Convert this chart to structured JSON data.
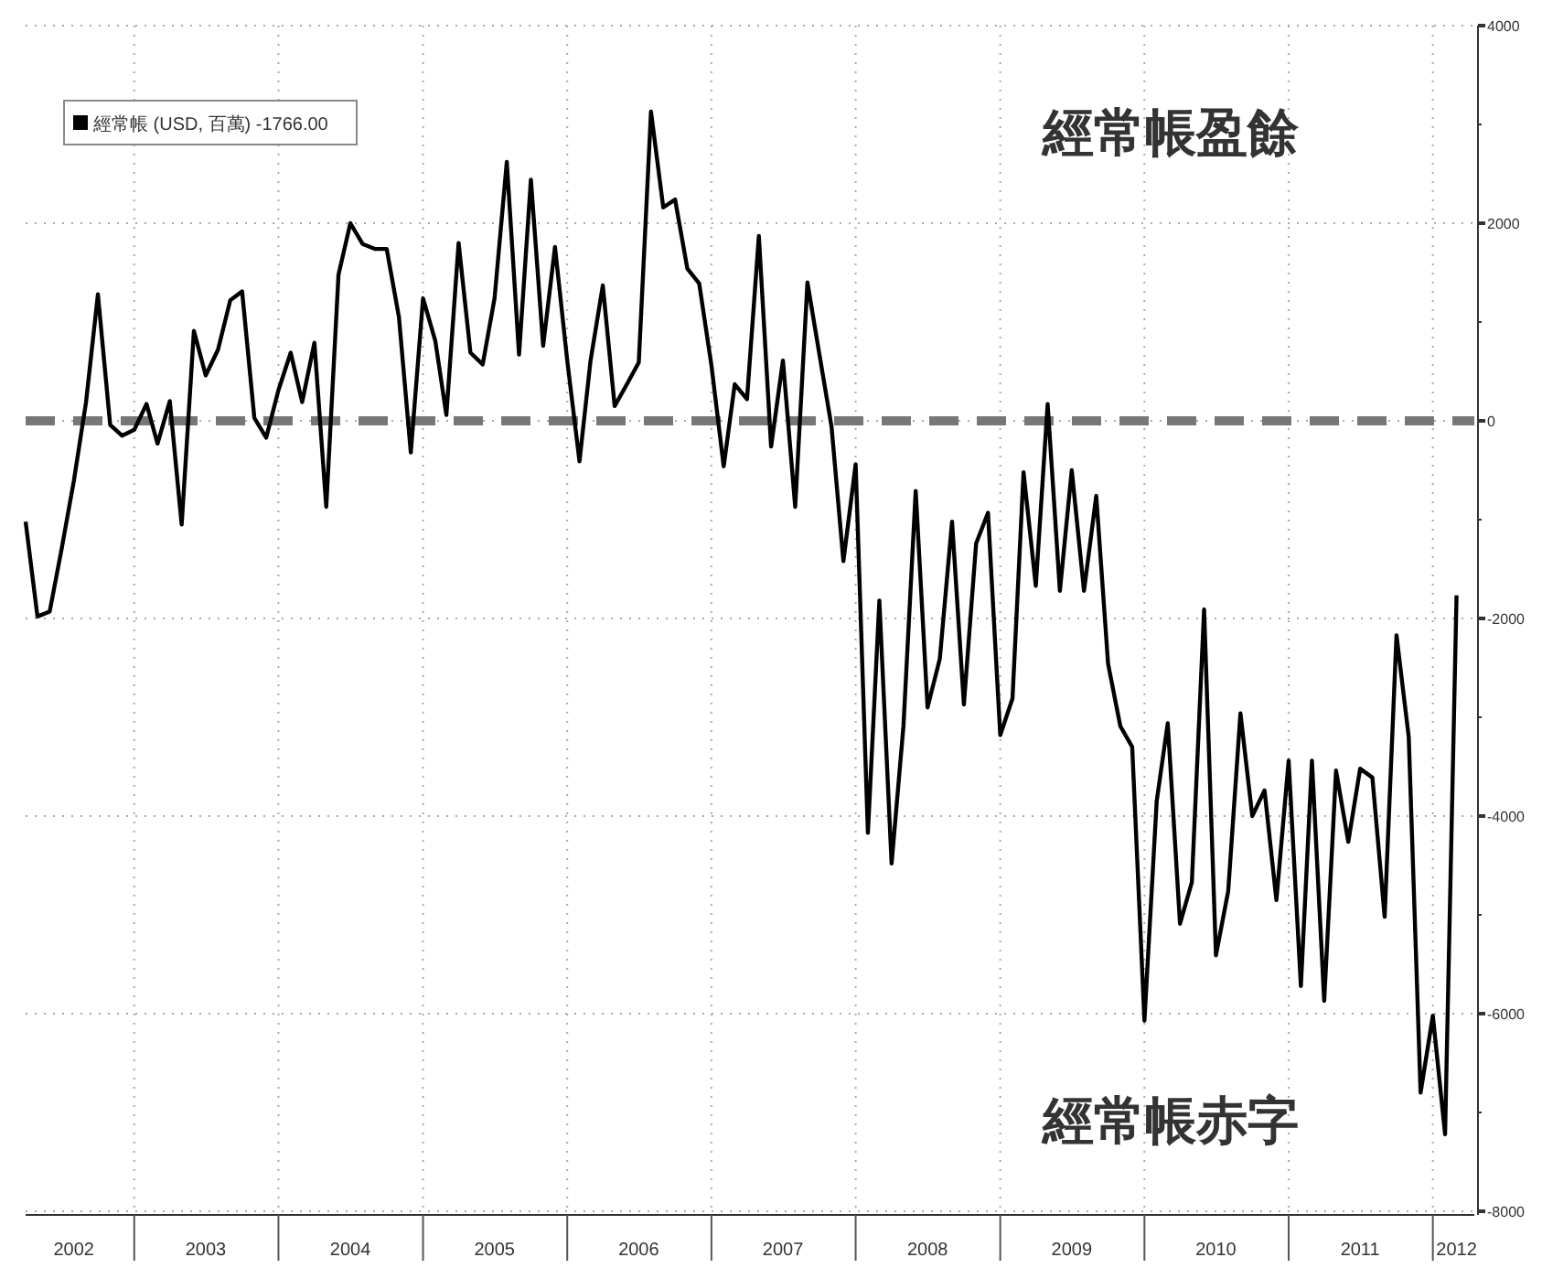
{
  "chart_data": {
    "type": "line",
    "x": [
      "2002-04",
      "2002-05",
      "2002-06",
      "2002-07",
      "2002-08",
      "2002-09",
      "2002-10",
      "2002-11",
      "2002-12",
      "2003-01",
      "2003-02",
      "2003-03",
      "2003-04",
      "2003-05",
      "2003-06",
      "2003-07",
      "2003-08",
      "2003-09",
      "2003-10",
      "2003-11",
      "2003-12",
      "2004-01",
      "2004-02",
      "2004-03",
      "2004-04",
      "2004-05",
      "2004-06",
      "2004-07",
      "2004-08",
      "2004-09",
      "2004-10",
      "2004-11",
      "2004-12",
      "2005-01",
      "2005-02",
      "2005-03",
      "2005-04",
      "2005-05",
      "2005-06",
      "2005-07",
      "2005-08",
      "2005-09",
      "2005-10",
      "2005-11",
      "2005-12",
      "2006-01",
      "2006-02",
      "2006-03",
      "2006-04",
      "2006-05",
      "2006-06",
      "2006-07",
      "2006-08",
      "2006-09",
      "2006-10",
      "2006-11",
      "2006-12",
      "2007-01",
      "2007-02",
      "2007-03",
      "2007-04",
      "2007-05",
      "2007-06",
      "2007-07",
      "2007-08",
      "2007-09",
      "2007-10",
      "2007-11",
      "2007-12",
      "2008-01",
      "2008-02",
      "2008-03",
      "2008-04",
      "2008-05",
      "2008-06",
      "2008-07",
      "2008-08",
      "2008-09",
      "2008-10",
      "2008-11",
      "2008-12",
      "2009-01",
      "2009-02",
      "2009-03",
      "2009-04",
      "2009-05",
      "2009-06",
      "2009-07",
      "2009-08",
      "2009-09",
      "2009-10",
      "2009-11",
      "2009-12",
      "2010-01",
      "2010-02",
      "2010-03",
      "2010-04",
      "2010-05",
      "2010-06",
      "2010-07",
      "2010-08",
      "2010-09",
      "2010-10",
      "2010-11",
      "2010-12",
      "2011-01",
      "2011-02",
      "2011-03",
      "2011-04",
      "2011-05",
      "2011-06",
      "2011-07",
      "2011-08",
      "2011-09",
      "2011-10",
      "2011-11",
      "2011-12",
      "2012-01",
      "2012-02",
      "2012-03"
    ],
    "series": [
      {
        "name": "經常帳 (USD, 百萬) -1766.00",
        "color": "#000000",
        "values": [
          -1020,
          -1980,
          -1930,
          -1300,
          -610,
          190,
          1280,
          -40,
          -150,
          -90,
          170,
          -230,
          200,
          -1050,
          910,
          460,
          720,
          1220,
          1310,
          30,
          -170,
          310,
          690,
          190,
          790,
          -870,
          1480,
          2000,
          1790,
          1740,
          1740,
          1050,
          -320,
          1240,
          810,
          60,
          1800,
          690,
          570,
          1240,
          2620,
          670,
          2440,
          760,
          1760,
          610,
          -410,
          610,
          1370,
          150,
          370,
          590,
          3130,
          2160,
          2240,
          1540,
          1390,
          560,
          -460,
          370,
          220,
          1870,
          -260,
          610,
          -870,
          1400,
          680,
          -60,
          -1420,
          -440,
          -4170,
          -1820,
          -4480,
          -3090,
          -710,
          -2900,
          -2410,
          -1020,
          -2870,
          -1240,
          -930,
          -3180,
          -2810,
          -520,
          -1670,
          170,
          -1720,
          -500,
          -1720,
          -760,
          -2460,
          -3090,
          -3300,
          -6070,
          -3850,
          -3060,
          -5090,
          -4670,
          -1910,
          -5410,
          -4760,
          -2960,
          -4000,
          -3740,
          -4850,
          -3440,
          -5720,
          -3440,
          -5870,
          -3540,
          -4260,
          -3520,
          -3610,
          -5020,
          -2170,
          -3200,
          -6800,
          -6020,
          -7220,
          -1766
        ]
      }
    ],
    "xlim": [
      "2002-04",
      "2012-04-15"
    ],
    "xticks": [
      {
        "value": "2002-08",
        "label": "2002"
      },
      {
        "value": "2003-01",
        "label": null
      },
      {
        "value": "2003-07",
        "label": "2003"
      },
      {
        "value": "2004-01",
        "label": null
      },
      {
        "value": "2004-07",
        "label": "2004"
      },
      {
        "value": "2005-01",
        "label": null
      },
      {
        "value": "2005-07",
        "label": "2005"
      },
      {
        "value": "2006-01",
        "label": null
      },
      {
        "value": "2006-07",
        "label": "2006"
      },
      {
        "value": "2007-01",
        "label": null
      },
      {
        "value": "2007-07",
        "label": "2007"
      },
      {
        "value": "2008-01",
        "label": null
      },
      {
        "value": "2008-07",
        "label": "2008"
      },
      {
        "value": "2009-01",
        "label": null
      },
      {
        "value": "2009-07",
        "label": "2009"
      },
      {
        "value": "2010-01",
        "label": null
      },
      {
        "value": "2010-07",
        "label": "2010"
      },
      {
        "value": "2011-01",
        "label": null
      },
      {
        "value": "2011-07",
        "label": "2011"
      },
      {
        "value": "2012-01",
        "label": null
      },
      {
        "value": "2012-03",
        "label": "2012"
      }
    ],
    "ylim": [
      -8000,
      4000
    ],
    "yticks": [
      -8000,
      {
        "value": -7000,
        "label": null
      },
      -6000,
      {
        "value": -5000,
        "label": null
      },
      -4000,
      {
        "value": -3000,
        "label": null
      },
      -2000,
      {
        "value": -1000,
        "label": null
      },
      0,
      {
        "value": 1000,
        "label": null
      },
      2000,
      {
        "value": 3000,
        "label": null
      },
      4000
    ],
    "grid": true,
    "legend": "top left",
    "line_style": "solid",
    "ref_lines": [
      {
        "axis": "y",
        "value": 0,
        "color": "#777777",
        "line_style": "dashed"
      }
    ],
    "annotations": [
      "經常帳盈餘",
      "經常帳赤字"
    ]
  }
}
